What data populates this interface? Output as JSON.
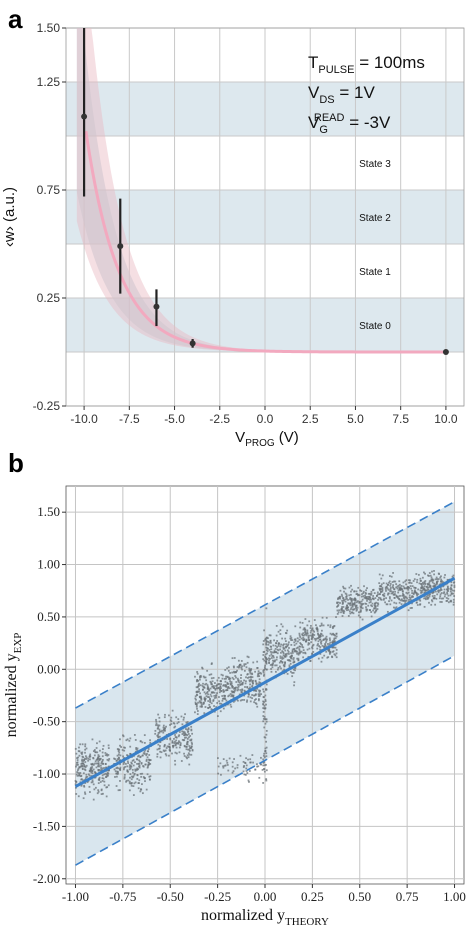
{
  "chart_data": [
    {
      "panel": "a",
      "type": "line",
      "xlabel": "V",
      "xlabel_sub": "PROG",
      "xlabel_unit": " (V)",
      "ylabel": "‹w› (a.u.)",
      "xlim": [
        -11,
        11
      ],
      "ylim": [
        -0.25,
        1.5
      ],
      "xticks": [
        -10.0,
        -7.5,
        -5.0,
        -2.5,
        0.0,
        2.5,
        5.0,
        7.5,
        10.0
      ],
      "xtick_labels": [
        "-10.0",
        "-7.5",
        "-5.0",
        "-2.5",
        "0.0",
        "2.5",
        "5.0",
        "7.5",
        "10.0"
      ],
      "yticks": [
        -0.25,
        0.25,
        0.75,
        1.25,
        1.5
      ],
      "ytick_labels": [
        "-0.25",
        "0.25",
        "0.75",
        "1.25",
        "1.50"
      ],
      "grid": true,
      "annotations": [
        {
          "main": "T",
          "sub": "PULSE",
          "rest": " = 100ms"
        },
        {
          "main": "V",
          "sub": "DS",
          "rest": " = 1V"
        },
        {
          "main": "V",
          "sub": "G",
          "sup": "READ",
          "rest": " = -3V"
        }
      ],
      "state_bands": [
        {
          "label": "State 0",
          "y0": 0.0,
          "y1": 0.25,
          "shaded": true
        },
        {
          "label": "State 1",
          "y0": 0.25,
          "y1": 0.5,
          "shaded": false
        },
        {
          "label": "State 2",
          "y0": 0.5,
          "y1": 0.75,
          "shaded": true
        },
        {
          "label": "State 3",
          "y0": 0.75,
          "y1": 1.0,
          "shaded": false
        },
        {
          "label": "",
          "y0": 1.0,
          "y1": 1.25,
          "shaded": true
        }
      ],
      "points": [
        {
          "x": -10.0,
          "y": 1.09,
          "lo": 0.72,
          "hi": 1.5
        },
        {
          "x": -8.0,
          "y": 0.49,
          "lo": 0.27,
          "hi": 0.71
        },
        {
          "x": -6.0,
          "y": 0.21,
          "lo": 0.12,
          "hi": 0.29
        },
        {
          "x": -4.0,
          "y": 0.04,
          "lo": 0.02,
          "hi": 0.06
        },
        {
          "x": 10.0,
          "y": 0.0,
          "lo": 0.0,
          "hi": 0.0
        }
      ],
      "fit": {
        "a": 1.08,
        "x0": -10.0,
        "k": 0.55,
        "c": 0.0
      },
      "band_pink": {
        "upper_scale": 1.75,
        "lower_scale": 0.45
      },
      "band_blue": {
        "upper_scale": 1.35,
        "lower_scale": 0.55
      },
      "colors": {
        "fit": "#f2a9bf",
        "band_pink": "#e8b9c0",
        "band_blue": "#b9cdd8",
        "state_band": "#dde8ee",
        "point": "#333333"
      }
    },
    {
      "panel": "b",
      "type": "scatter",
      "xlabel": "normalized y",
      "xlabel_sub": "THEORY",
      "ylabel": "normalized y",
      "ylabel_sub": "EXP",
      "xlim": [
        -1.05,
        1.05
      ],
      "ylim": [
        -2.05,
        1.75
      ],
      "xticks": [
        -1.0,
        -0.75,
        -0.5,
        -0.25,
        0.0,
        0.25,
        0.5,
        0.75,
        1.0
      ],
      "xtick_labels": [
        "-1.00",
        "-0.75",
        "-0.50",
        "-0.25",
        "0.00",
        "0.25",
        "0.50",
        "0.75",
        "1.00"
      ],
      "yticks": [
        -2.0,
        -1.5,
        -1.0,
        -0.5,
        0.0,
        0.5,
        1.0,
        1.5
      ],
      "ytick_labels": [
        "-2.00",
        "-1.50",
        "-1.00",
        "-0.50",
        "0.00",
        "0.50",
        "1.00",
        "1.50"
      ],
      "grid": true,
      "fit_line": {
        "x": [
          -1.0,
          1.0
        ],
        "y": [
          -1.12,
          0.87
        ]
      },
      "upper_bound": {
        "x": [
          -1.0,
          1.0
        ],
        "y": [
          -0.37,
          1.6
        ]
      },
      "lower_bound": {
        "x": [
          -1.0,
          1.0
        ],
        "y": [
          -1.87,
          0.13
        ]
      },
      "clusters": [
        {
          "x": [
            -1.0,
            -0.82
          ],
          "y": [
            -1.3,
            -0.6
          ],
          "n": 260
        },
        {
          "x": [
            -0.8,
            -0.6
          ],
          "y": [
            -1.25,
            -0.55
          ],
          "n": 220
        },
        {
          "x": [
            -0.58,
            -0.38
          ],
          "y": [
            -1.0,
            -0.35
          ],
          "n": 220
        },
        {
          "x": [
            -0.37,
            -0.2
          ],
          "y": [
            -0.55,
            0.1
          ],
          "n": 220
        },
        {
          "x": [
            -0.2,
            -0.02
          ],
          "y": [
            -0.45,
            0.2
          ],
          "n": 230
        },
        {
          "x": [
            0.0,
            0.18
          ],
          "y": [
            -0.2,
            0.5
          ],
          "n": 230
        },
        {
          "x": [
            0.18,
            0.38
          ],
          "y": [
            0.0,
            0.55
          ],
          "n": 230
        },
        {
          "x": [
            0.38,
            0.6
          ],
          "y": [
            0.45,
            0.85
          ],
          "n": 230
        },
        {
          "x": [
            0.6,
            0.82
          ],
          "y": [
            0.5,
            0.95
          ],
          "n": 220
        },
        {
          "x": [
            0.82,
            1.0
          ],
          "y": [
            0.55,
            1.0
          ],
          "n": 220
        },
        {
          "x": [
            -0.25,
            0.0
          ],
          "y": [
            -1.1,
            -0.75
          ],
          "n": 60
        },
        {
          "x": [
            -0.01,
            0.01
          ],
          "y": [
            -1.5,
            0.8
          ],
          "n": 80
        }
      ],
      "colors": {
        "fit": "#3a80c9",
        "bound": "#3a80c9",
        "band": "#cfe0ea",
        "scatter": "#6b7378"
      }
    }
  ]
}
